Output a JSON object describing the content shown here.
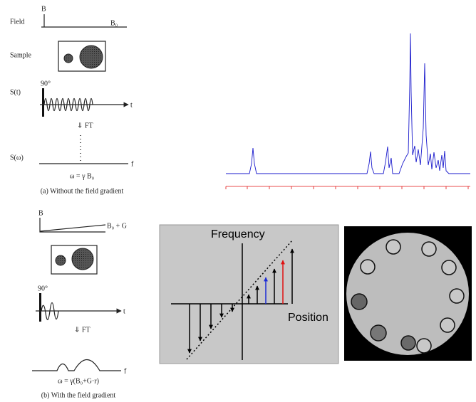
{
  "panel_a": {
    "field_label": "Field",
    "field_b": "B",
    "field_b0": "B₀",
    "sample_label": "Sample",
    "signal_label": "S(t)",
    "pulse_label": "90°",
    "time_axis": "t",
    "ft_arrow": "⇓ FT",
    "spectrum_label": "S(ω)",
    "freq_axis": "f",
    "equation": "ω = γ B₀",
    "caption": "(a) Without the field gradient"
  },
  "panel_b": {
    "field_b": "B",
    "field_b0g": "B₀ + G",
    "pulse_label": "90°",
    "time_axis": "t",
    "ft_arrow": "⇓ FT",
    "freq_axis": "f",
    "equation": "ω = γ(B₀+G·r)",
    "caption": "(b) With the field gradient"
  },
  "gradient_diagram": {
    "y_label": "Frequency",
    "x_label": "Position"
  }
}
